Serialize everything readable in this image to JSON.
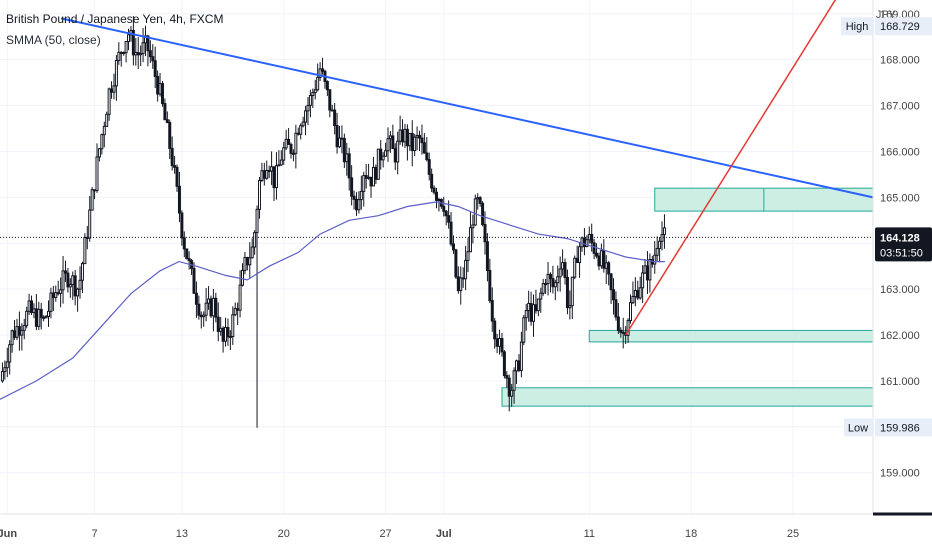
{
  "header": {
    "title": "British Pound / Japanese Yen, 4h, FXCM",
    "indicator": "SMMA (50, close)"
  },
  "chart_data": {
    "type": "candlestick",
    "symbol": "GBP/JPY",
    "timeframe": "4h",
    "price_axis": {
      "unit_label": "JPY",
      "range": [
        158.1,
        169.3
      ],
      "ticks": [
        "159.000",
        "160.000",
        "161.000",
        "162.000",
        "163.000",
        "164.000",
        "165.000",
        "166.000",
        "167.000",
        "168.000",
        "169.000"
      ]
    },
    "time_axis": {
      "range_days": [
        -0.5,
        59.5
      ],
      "ticks": [
        {
          "day": 0,
          "label": "Jun",
          "bold": true
        },
        {
          "day": 6,
          "label": "7"
        },
        {
          "day": 12,
          "label": "13"
        },
        {
          "day": 19,
          "label": "20"
        },
        {
          "day": 26,
          "label": "27"
        },
        {
          "day": 30,
          "label": "Jul",
          "bold": true
        },
        {
          "day": 40,
          "label": "11"
        },
        {
          "day": 47,
          "label": "18"
        },
        {
          "day": 54,
          "label": "25"
        }
      ]
    },
    "grid": true,
    "price_labels": {
      "high": {
        "label": "High",
        "value": "168.729"
      },
      "low": {
        "label": "Low",
        "value": "159.986"
      },
      "current": {
        "value": "164.128",
        "countdown": "03:51:50"
      }
    },
    "candle_path_day_close": [
      [
        -0.5,
        161.0
      ],
      [
        0.3,
        162.0
      ],
      [
        1.5,
        162.5
      ],
      [
        2.5,
        162.3
      ],
      [
        3.4,
        163.0
      ],
      [
        4.2,
        163.3
      ],
      [
        4.9,
        163.0
      ],
      [
        5.6,
        164.5
      ],
      [
        6.3,
        166.0
      ],
      [
        7.0,
        167.3
      ],
      [
        7.8,
        168.2
      ],
      [
        8.3,
        168.6
      ],
      [
        8.9,
        168.1
      ],
      [
        9.6,
        168.3
      ],
      [
        10.4,
        167.4
      ],
      [
        11.3,
        165.9
      ],
      [
        12.1,
        164.1
      ],
      [
        12.7,
        163.2
      ],
      [
        13.4,
        162.4
      ],
      [
        14.2,
        162.7
      ],
      [
        14.8,
        161.8
      ],
      [
        15.4,
        162.2
      ],
      [
        15.9,
        162.8
      ],
      [
        16.4,
        163.6
      ],
      [
        16.9,
        163.9
      ],
      [
        17.3,
        165.3
      ],
      [
        17.9,
        165.9
      ],
      [
        18.4,
        165.3
      ],
      [
        18.9,
        166.0
      ],
      [
        19.6,
        166.1
      ],
      [
        20.1,
        166.7
      ],
      [
        20.8,
        167.1
      ],
      [
        21.5,
        167.8
      ],
      [
        22.1,
        167.1
      ],
      [
        22.7,
        166.3
      ],
      [
        23.3,
        165.8
      ],
      [
        23.9,
        164.8
      ],
      [
        24.5,
        165.6
      ],
      [
        25.1,
        165.4
      ],
      [
        25.6,
        165.9
      ],
      [
        26.1,
        166.3
      ],
      [
        26.6,
        165.9
      ],
      [
        27.2,
        166.4
      ],
      [
        27.8,
        166.1
      ],
      [
        28.3,
        166.3
      ],
      [
        28.9,
        165.6
      ],
      [
        29.5,
        165.1
      ],
      [
        30.0,
        164.9
      ],
      [
        30.6,
        163.8
      ],
      [
        31.0,
        162.9
      ],
      [
        31.5,
        163.5
      ],
      [
        32.0,
        164.6
      ],
      [
        32.4,
        164.9
      ],
      [
        32.9,
        163.7
      ],
      [
        33.4,
        162.3
      ],
      [
        34.0,
        161.5
      ],
      [
        34.6,
        160.8
      ],
      [
        35.1,
        161.3
      ],
      [
        35.7,
        162.6
      ],
      [
        36.3,
        162.4
      ],
      [
        37.0,
        163.3
      ],
      [
        37.6,
        163.0
      ],
      [
        38.1,
        163.8
      ],
      [
        38.6,
        162.5
      ],
      [
        39.2,
        163.9
      ],
      [
        39.9,
        164.1
      ],
      [
        40.6,
        163.8
      ],
      [
        41.2,
        163.3
      ],
      [
        41.8,
        162.5
      ],
      [
        42.3,
        162.0
      ],
      [
        42.8,
        162.6
      ],
      [
        43.4,
        163.1
      ],
      [
        44.0,
        163.4
      ],
      [
        44.4,
        163.6
      ],
      [
        44.8,
        164.3
      ],
      [
        45.2,
        164.1
      ]
    ],
    "candle_high_marks": {
      "high_day": 8.5,
      "low_day": 34.8,
      "wick_low_day": 17.2,
      "wick_low_price": 159.98
    },
    "smma": [
      [
        -0.5,
        160.6
      ],
      [
        2.0,
        161.0
      ],
      [
        4.5,
        161.5
      ],
      [
        6.5,
        162.2
      ],
      [
        8.5,
        162.9
      ],
      [
        10.5,
        163.4
      ],
      [
        11.8,
        163.6
      ],
      [
        13.0,
        163.5
      ],
      [
        15.0,
        163.3
      ],
      [
        16.5,
        163.2
      ],
      [
        18.0,
        163.5
      ],
      [
        20.0,
        163.8
      ],
      [
        21.5,
        164.2
      ],
      [
        23.5,
        164.5
      ],
      [
        25.5,
        164.6
      ],
      [
        27.5,
        164.8
      ],
      [
        29.5,
        164.9
      ],
      [
        31.0,
        164.8
      ],
      [
        32.5,
        164.6
      ],
      [
        34.5,
        164.4
      ],
      [
        36.5,
        164.2
      ],
      [
        38.5,
        164.1
      ],
      [
        40.5,
        163.9
      ],
      [
        42.5,
        163.7
      ],
      [
        44.5,
        163.6
      ],
      [
        45.2,
        163.6
      ]
    ],
    "drawings": {
      "trendline_blue": {
        "from": [
          3.7,
          168.9
        ],
        "to": [
          59.5,
          165.0
        ]
      },
      "trendline_red": {
        "from": [
          42.5,
          162.0
        ],
        "to": [
          57.3,
          169.5
        ]
      },
      "zones": [
        {
          "day_from": 44.5,
          "day_to": 59.5,
          "price_from": 164.7,
          "price_to": 165.2,
          "divider_day": 52.0
        },
        {
          "day_from": 40.0,
          "day_to": 59.5,
          "price_from": 161.85,
          "price_to": 162.1
        },
        {
          "day_from": 34.0,
          "day_to": 59.5,
          "price_from": 160.45,
          "price_to": 160.85
        }
      ]
    },
    "colors": {
      "up": "#26a69a",
      "down": "#ef5350",
      "candle": "#131722",
      "smma": "#5b5fc7",
      "trend_blue": "#2962ff",
      "trend_red": "#e53935",
      "zone_fill": "#cdeee2",
      "zone_stroke": "#26a69a",
      "label_bg": "#e8eef8",
      "current_label_bg": "#131722"
    }
  }
}
